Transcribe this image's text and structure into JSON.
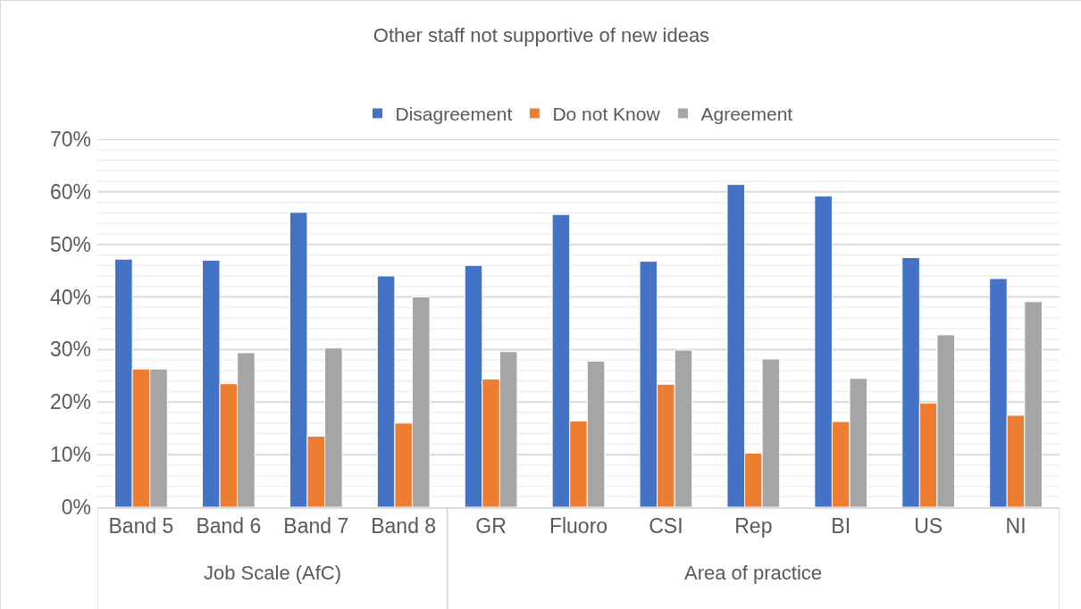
{
  "chart_data": {
    "type": "bar",
    "title": "Other staff not supportive of new ideas",
    "categories": [
      "Band 5",
      "Band 6",
      "Band 7",
      "Band 8",
      "GR",
      "Fluoro",
      "CSI",
      "Rep",
      "BI",
      "US",
      "NI"
    ],
    "series": [
      {
        "name": "Disagreement",
        "color": "#4472c4",
        "values": [
          47.2,
          47.0,
          56.1,
          44.0,
          46.0,
          55.7,
          46.8,
          61.4,
          59.2,
          47.5,
          43.5
        ]
      },
      {
        "name": "Do not Know",
        "color": "#ed7d31",
        "values": [
          26.3,
          23.5,
          13.5,
          16.0,
          24.4,
          16.4,
          23.4,
          10.3,
          16.3,
          19.8,
          17.5
        ]
      },
      {
        "name": "Agreement",
        "color": "#a5a5a5",
        "values": [
          26.3,
          29.4,
          30.3,
          40.0,
          29.6,
          27.8,
          29.9,
          28.2,
          24.5,
          32.8,
          39.1
        ]
      }
    ],
    "annotations": [
      "Job Scale (AfC)",
      "Area of practice"
    ],
    "ylim": [
      0,
      70
    ],
    "yticks": [
      {
        "value": 0,
        "label": "0%"
      },
      {
        "value": 2,
        "label": null
      },
      {
        "value": 4,
        "label": null
      },
      {
        "value": 6,
        "label": null
      },
      {
        "value": 8,
        "label": null
      },
      {
        "value": 10,
        "label": "10%"
      },
      {
        "value": 12,
        "label": null
      },
      {
        "value": 14,
        "label": null
      },
      {
        "value": 16,
        "label": null
      },
      {
        "value": 18,
        "label": null
      },
      {
        "value": 20,
        "label": "20%"
      },
      {
        "value": 22,
        "label": null
      },
      {
        "value": 24,
        "label": null
      },
      {
        "value": 26,
        "label": null
      },
      {
        "value": 28,
        "label": null
      },
      {
        "value": 30,
        "label": "30%"
      },
      {
        "value": 32,
        "label": null
      },
      {
        "value": 34,
        "label": null
      },
      {
        "value": 36,
        "label": null
      },
      {
        "value": 38,
        "label": null
      },
      {
        "value": 40,
        "label": "40%"
      },
      {
        "value": 42,
        "label": null
      },
      {
        "value": 44,
        "label": null
      },
      {
        "value": 46,
        "label": null
      },
      {
        "value": 48,
        "label": null
      },
      {
        "value": 50,
        "label": "50%"
      },
      {
        "value": 52,
        "label": null
      },
      {
        "value": 54,
        "label": null
      },
      {
        "value": 56,
        "label": null
      },
      {
        "value": 58,
        "label": null
      },
      {
        "value": 60,
        "label": "60%"
      },
      {
        "value": 62,
        "label": null
      },
      {
        "value": 64,
        "label": null
      },
      {
        "value": 66,
        "label": null
      },
      {
        "value": 68,
        "label": null
      },
      {
        "value": 70,
        "label": "70%"
      }
    ],
    "grid": true,
    "legend": "top"
  }
}
